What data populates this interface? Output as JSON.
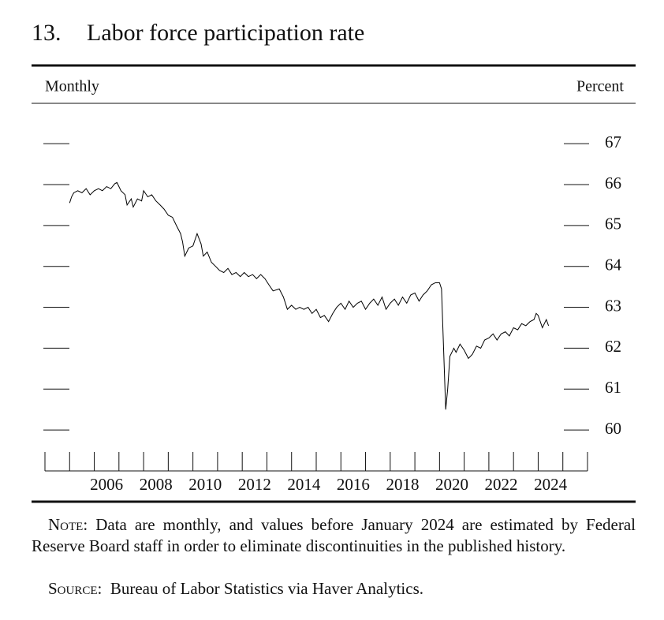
{
  "chart_data": {
    "type": "line",
    "figure_number": "13.",
    "title": "Labor force participation rate",
    "frequency_label": "Monthly",
    "y_label": "Percent",
    "x": [
      2005.0,
      2005.08,
      2005.17,
      2005.33,
      2005.5,
      2005.67,
      2005.83,
      2006.0,
      2006.17,
      2006.33,
      2006.5,
      2006.67,
      2006.83,
      2006.92,
      2007.08,
      2007.25,
      2007.33,
      2007.5,
      2007.58,
      2007.75,
      2007.92,
      2008.0,
      2008.17,
      2008.33,
      2008.5,
      2008.67,
      2008.83,
      2009.0,
      2009.17,
      2009.33,
      2009.5,
      2009.58,
      2009.67,
      2009.83,
      2010.0,
      2010.17,
      2010.33,
      2010.42,
      2010.58,
      2010.75,
      2010.92,
      2011.08,
      2011.25,
      2011.42,
      2011.58,
      2011.75,
      2011.92,
      2012.08,
      2012.25,
      2012.42,
      2012.58,
      2012.75,
      2012.92,
      2013.08,
      2013.25,
      2013.5,
      2013.67,
      2013.83,
      2014.0,
      2014.17,
      2014.33,
      2014.5,
      2014.67,
      2014.83,
      2015.0,
      2015.17,
      2015.33,
      2015.5,
      2015.67,
      2015.83,
      2016.0,
      2016.17,
      2016.33,
      2016.5,
      2016.67,
      2016.83,
      2017.0,
      2017.17,
      2017.33,
      2017.5,
      2017.67,
      2017.83,
      2018.0,
      2018.17,
      2018.33,
      2018.5,
      2018.67,
      2018.83,
      2019.0,
      2019.17,
      2019.33,
      2019.5,
      2019.67,
      2019.83,
      2020.0,
      2020.08,
      2020.25,
      2020.33,
      2020.42,
      2020.58,
      2020.67,
      2020.83,
      2021.0,
      2021.17,
      2021.33,
      2021.5,
      2021.67,
      2021.83,
      2022.0,
      2022.17,
      2022.33,
      2022.5,
      2022.67,
      2022.83,
      2023.0,
      2023.17,
      2023.33,
      2023.5,
      2023.67,
      2023.83,
      2023.92,
      2024.0,
      2024.17,
      2024.33,
      2024.42
    ],
    "series": [
      {
        "name": "Labor force participation rate",
        "color": "#000000",
        "values": [
          65.55,
          65.7,
          65.8,
          65.85,
          65.8,
          65.9,
          65.75,
          65.85,
          65.9,
          65.85,
          65.95,
          65.9,
          66.02,
          66.05,
          65.85,
          65.75,
          65.5,
          65.65,
          65.45,
          65.65,
          65.6,
          65.85,
          65.7,
          65.75,
          65.6,
          65.5,
          65.4,
          65.25,
          65.2,
          65.0,
          64.8,
          64.6,
          64.25,
          64.45,
          64.5,
          64.8,
          64.55,
          64.25,
          64.35,
          64.1,
          64.0,
          63.9,
          63.85,
          63.95,
          63.8,
          63.85,
          63.75,
          63.85,
          63.75,
          63.8,
          63.7,
          63.8,
          63.7,
          63.55,
          63.4,
          63.45,
          63.25,
          62.95,
          63.05,
          62.95,
          63.0,
          62.95,
          63.0,
          62.85,
          62.95,
          62.75,
          62.8,
          62.65,
          62.85,
          63.0,
          63.1,
          62.95,
          63.15,
          63.0,
          63.1,
          63.15,
          62.95,
          63.1,
          63.2,
          63.05,
          63.25,
          62.95,
          63.1,
          63.2,
          63.05,
          63.25,
          63.1,
          63.3,
          63.35,
          63.15,
          63.3,
          63.4,
          63.55,
          63.6,
          63.6,
          63.45,
          60.5,
          61.0,
          61.8,
          62.0,
          61.9,
          62.1,
          61.95,
          61.75,
          61.85,
          62.05,
          62.0,
          62.2,
          62.25,
          62.35,
          62.2,
          62.35,
          62.4,
          62.3,
          62.5,
          62.45,
          62.6,
          62.55,
          62.65,
          62.7,
          62.85,
          62.8,
          62.5,
          62.7,
          62.55
        ]
      }
    ],
    "xlim": [
      2004,
      2026
    ],
    "xticks": [
      2004,
      2005,
      2006,
      2007,
      2008,
      2009,
      2010,
      2011,
      2012,
      2013,
      2014,
      2015,
      2016,
      2017,
      2018,
      2019,
      2020,
      2021,
      2022,
      2023,
      2024,
      2025,
      2026
    ],
    "xtick_labels": [
      2006,
      2008,
      2010,
      2012,
      2014,
      2016,
      2018,
      2020,
      2022,
      2024
    ],
    "ylim": [
      59,
      67.6
    ],
    "yticks": [
      60,
      61,
      62,
      63,
      64,
      65,
      66,
      67
    ],
    "note_label": "Note:",
    "note": "Data are monthly, and values before January 2024 are estimated by Federal Reserve Board staff in order to eliminate discontinuities in the published history.",
    "source_label": "Source:",
    "source": "Bureau of Labor Statistics via Haver Analytics."
  }
}
